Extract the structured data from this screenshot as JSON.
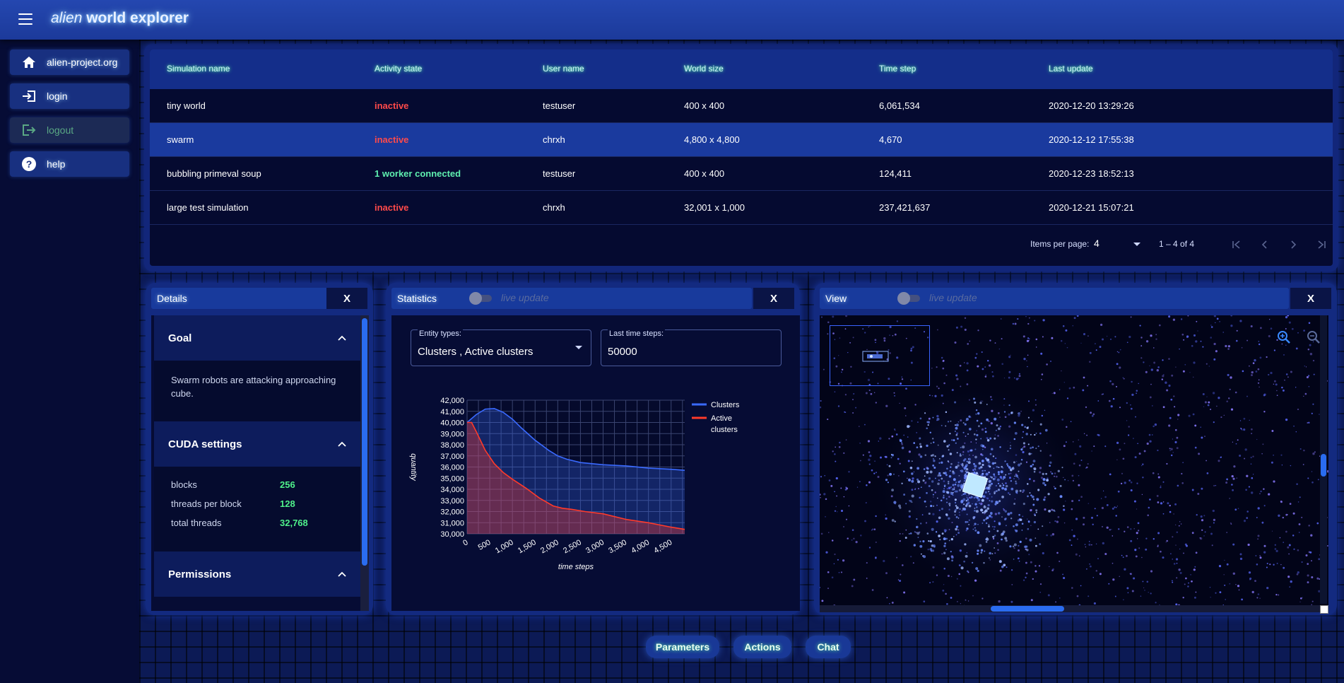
{
  "app": {
    "title_part1": "alien",
    "title_part2": "world explorer"
  },
  "sidebar": {
    "items": [
      {
        "label": "alien-project.org",
        "icon": "home-icon",
        "disabled": false
      },
      {
        "label": "login",
        "icon": "login-icon",
        "disabled": false
      },
      {
        "label": "logout",
        "icon": "logout-icon",
        "disabled": true
      },
      {
        "label": "help",
        "icon": "help-icon",
        "disabled": false
      }
    ]
  },
  "table": {
    "headers": [
      "Simulation name",
      "Activity state",
      "User name",
      "World size",
      "Time step",
      "Last update"
    ],
    "rows": [
      {
        "name": "tiny world",
        "state": "inactive",
        "user": "testuser",
        "size": "400 x 400",
        "step": "6,061,534",
        "updated": "2020-12-20 13:29:26"
      },
      {
        "name": "swarm",
        "state": "inactive",
        "user": "chrxh",
        "size": "4,800 x 4,800",
        "step": "4,670",
        "updated": "2020-12-12 17:55:38"
      },
      {
        "name": "bubbling primeval soup",
        "state": "1 worker connected",
        "user": "testuser",
        "size": "400 x 400",
        "step": "124,411",
        "updated": "2020-12-23 18:52:13"
      },
      {
        "name": "large test simulation",
        "state": "inactive",
        "user": "chrxh",
        "size": "32,001 x 1,000",
        "step": "237,421,637",
        "updated": "2020-12-21 15:07:21"
      }
    ],
    "selected_row": 1,
    "paginator": {
      "items_per_page_label": "Items per page:",
      "items_per_page": "4",
      "range": "1 – 4 of 4"
    }
  },
  "details": {
    "title": "Details",
    "close": "X",
    "goal": {
      "title": "Goal",
      "text": "Swarm robots are attacking approaching cube."
    },
    "cuda": {
      "title": "CUDA settings",
      "rows": [
        {
          "label": "blocks",
          "value": "256"
        },
        {
          "label": "threads per block",
          "value": "128"
        },
        {
          "label": "total threads",
          "value": "32,768"
        }
      ]
    },
    "permissions": {
      "title": "Permissions"
    }
  },
  "statistics": {
    "title": "Statistics",
    "live_update": "live update",
    "close": "X",
    "entity_types_label": "Entity types:",
    "entity_types_value": "Clusters , Active clusters",
    "last_steps_label": "Last time steps:",
    "last_steps_value": "50000"
  },
  "view": {
    "title": "View",
    "live_update": "live update",
    "close": "X"
  },
  "bottom_buttons": [
    "Parameters",
    "Actions",
    "Chat"
  ],
  "colors": {
    "inactive": "#ff4a4a",
    "connected": "#5ff0b0",
    "clusters": "#3a6aff",
    "active_clusters": "#ff3a2a"
  },
  "chart_data": {
    "type": "area",
    "title": "",
    "xlabel": "time steps",
    "ylabel": "quantity",
    "xlim": [
      0,
      4800
    ],
    "ylim": [
      30000,
      42000
    ],
    "x_ticks": [
      "0",
      "500",
      "1,000",
      "1,500",
      "2,000",
      "2,500",
      "3,000",
      "3,500",
      "4,000",
      "4,500"
    ],
    "y_ticks": [
      "30,000",
      "31,000",
      "32,000",
      "33,000",
      "34,000",
      "35,000",
      "36,000",
      "37,000",
      "38,000",
      "39,000",
      "40,000",
      "41,000",
      "42,000"
    ],
    "legend_position": "right",
    "series": [
      {
        "name": "Clusters",
        "color": "#3a6aff",
        "x": [
          0,
          200,
          400,
          600,
          800,
          1000,
          1200,
          1500,
          1800,
          2000,
          2200,
          2500,
          3000,
          3500,
          4000,
          4500,
          4800
        ],
        "y": [
          40000,
          40700,
          41200,
          41250,
          40900,
          40300,
          39500,
          38400,
          37500,
          37000,
          36700,
          36400,
          36200,
          36100,
          35900,
          35800,
          35700
        ]
      },
      {
        "name": "Active clusters",
        "color": "#ff3a2a",
        "x": [
          0,
          100,
          200,
          400,
          600,
          800,
          1000,
          1300,
          1600,
          1900,
          2100,
          2300,
          2600,
          3000,
          3500,
          4000,
          4500,
          4800
        ],
        "y": [
          40000,
          40000,
          39200,
          37500,
          36300,
          35500,
          34900,
          34100,
          33200,
          32500,
          32300,
          32200,
          32000,
          31800,
          31300,
          31000,
          30600,
          30400
        ]
      }
    ]
  }
}
